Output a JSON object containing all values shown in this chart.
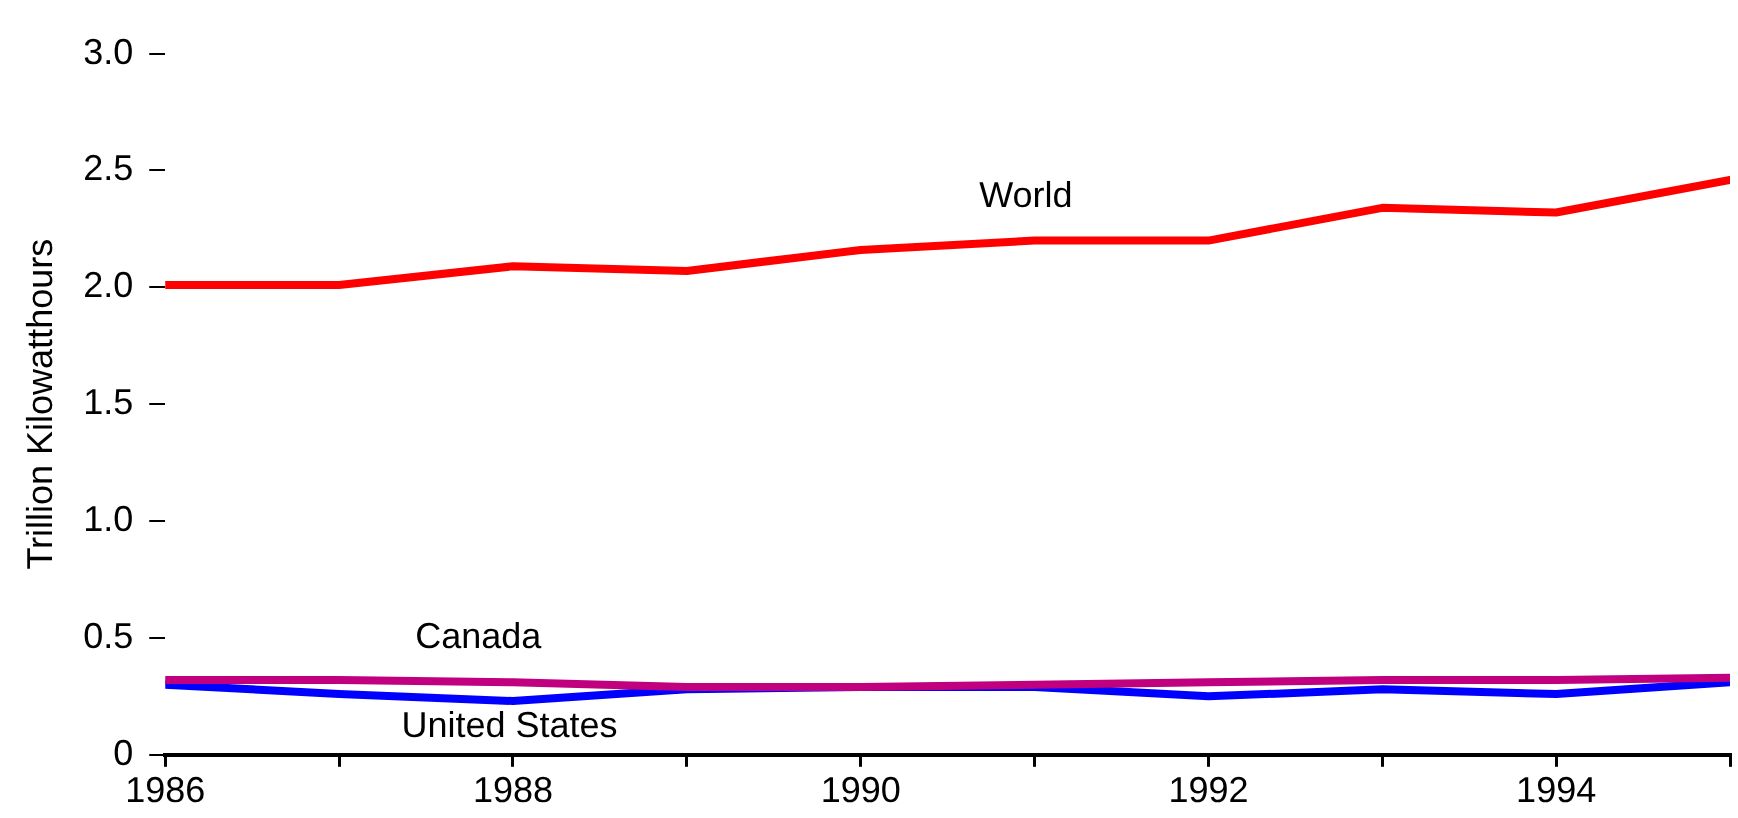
{
  "chart_data": {
    "type": "line",
    "ylabel": "Trillion Kilowatthours",
    "x": [
      1986,
      1987,
      1988,
      1989,
      1990,
      1991,
      1992,
      1993,
      1994,
      1995
    ],
    "series": [
      {
        "name": "World",
        "color": "#ff0000",
        "values": [
          2.01,
          2.01,
          2.09,
          2.07,
          2.16,
          2.2,
          2.2,
          2.34,
          2.32,
          2.46
        ]
      },
      {
        "name": "Canada",
        "color": "#c0007f",
        "values": [
          0.32,
          0.32,
          0.31,
          0.29,
          0.29,
          0.3,
          0.31,
          0.32,
          0.32,
          0.33
        ]
      },
      {
        "name": "United States",
        "color": "#0000ff",
        "values": [
          0.3,
          0.26,
          0.23,
          0.28,
          0.29,
          0.29,
          0.25,
          0.28,
          0.26,
          0.31
        ]
      }
    ],
    "xlim": [
      1986,
      1995
    ],
    "xticks": [
      1986,
      {
        "value": 1987,
        "label": null
      },
      1988,
      {
        "value": 1989,
        "label": null
      },
      1990,
      {
        "value": 1991,
        "label": null
      },
      1992,
      {
        "value": 1993,
        "label": null
      },
      1994,
      {
        "value": 1995,
        "label": null
      }
    ],
    "ylim": [
      0,
      3
    ],
    "yticks": [
      0,
      0.5,
      {
        "value": 1,
        "label": "1.0"
      },
      1.5,
      {
        "value": 2,
        "label": "2.0"
      },
      2.5,
      {
        "value": 3,
        "label": "3.0"
      }
    ],
    "grid": false,
    "legend": false,
    "marker": "none",
    "line_style": "solid"
  }
}
